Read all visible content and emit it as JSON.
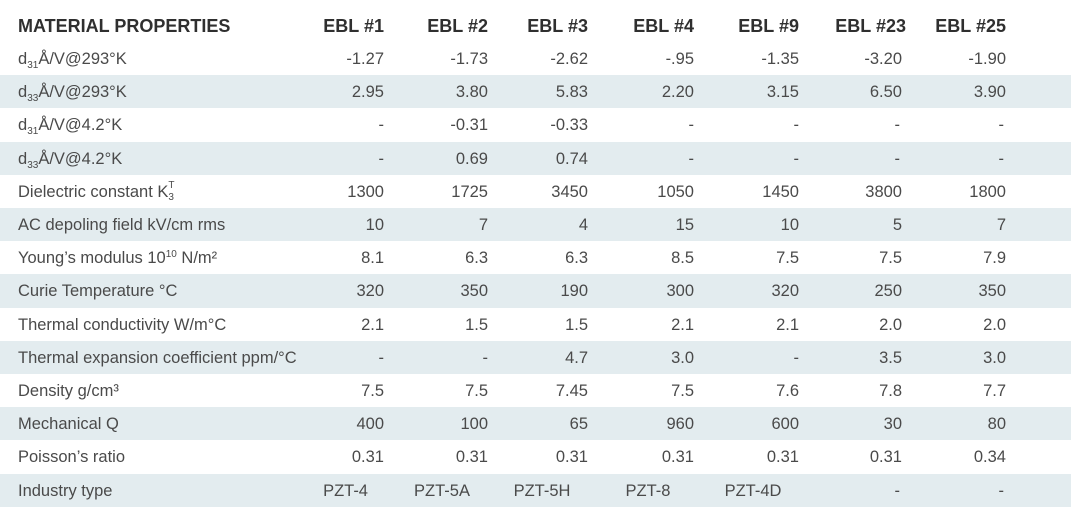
{
  "header": {
    "title": "MATERIAL PROPERTIES",
    "columns": [
      "EBL #1",
      "EBL #2",
      "EBL #3",
      "EBL #4",
      "EBL #9",
      "EBL #23",
      "EBL #25"
    ]
  },
  "rows": [
    {
      "label_main": "d",
      "label_sub": "31",
      "label_rest": "Å/V@293°K",
      "values": [
        "-1.27",
        "-1.73",
        "-2.62",
        "-.95",
        "-1.35",
        "-3.20",
        "-1.90"
      ]
    },
    {
      "label_main": "d",
      "label_sub": "33",
      "label_rest": "Å/V@293°K",
      "values": [
        "2.95",
        "3.80",
        "5.83",
        "2.20",
        "3.15",
        "6.50",
        "3.90"
      ]
    },
    {
      "label_main": "d",
      "label_sub": "31",
      "label_rest": "Å/V@4.2°K",
      "values": [
        "-",
        "-0.31",
        "-0.33",
        "-",
        "-",
        "-",
        "-"
      ]
    },
    {
      "label_main": "d",
      "label_sub": "33",
      "label_rest": "Å/V@4.2°K",
      "values": [
        "-",
        "0.69",
        "0.74",
        "-",
        "-",
        "-",
        "-"
      ]
    },
    {
      "label_main": "Dielectric constant K",
      "label_sup": "T",
      "label_sub": "3",
      "values": [
        "1300",
        "1725",
        "3450",
        "1050",
        "1450",
        "3800",
        "1800"
      ]
    },
    {
      "label_main": "AC depoling field kV/cm rms",
      "values": [
        "10",
        "7",
        "4",
        "15",
        "10",
        "5",
        "7"
      ]
    },
    {
      "label_main": "Young’s modulus 10",
      "label_sup": "10",
      "label_rest": " N/m²",
      "values": [
        "8.1",
        "6.3",
        "6.3",
        "8.5",
        "7.5",
        "7.5",
        "7.9"
      ]
    },
    {
      "label_main": "Curie Temperature °C",
      "values": [
        "320",
        "350",
        "190",
        "300",
        "320",
        "250",
        "350"
      ]
    },
    {
      "label_main": "Thermal conductivity W/m°C",
      "values": [
        "2.1",
        "1.5",
        "1.5",
        "2.1",
        "2.1",
        "2.0",
        "2.0"
      ]
    },
    {
      "label_main": "Thermal expansion coefficient ppm/°C",
      "values": [
        "-",
        "-",
        "4.7",
        "3.0",
        "-",
        "3.5",
        "3.0"
      ]
    },
    {
      "label_main": "Density g/cm³",
      "values": [
        "7.5",
        "7.5",
        "7.45",
        "7.5",
        "7.6",
        "7.8",
        "7.7"
      ]
    },
    {
      "label_main": "Mechanical Q",
      "values": [
        "400",
        "100",
        "65",
        "960",
        "600",
        "30",
        "80"
      ]
    },
    {
      "label_main": "Poisson’s ratio",
      "values": [
        "0.31",
        "0.31",
        "0.31",
        "0.31",
        "0.31",
        "0.31",
        "0.34"
      ]
    },
    {
      "label_main": "Industry type",
      "values": [
        "PZT-4",
        "PZT-5A",
        "PZT-5H",
        "PZT-8",
        "PZT-4D",
        "-",
        "-"
      ]
    }
  ],
  "colors": {
    "shade": "#e3ecef",
    "text": "#4a4a4a",
    "header_text": "#2f2f2f"
  }
}
